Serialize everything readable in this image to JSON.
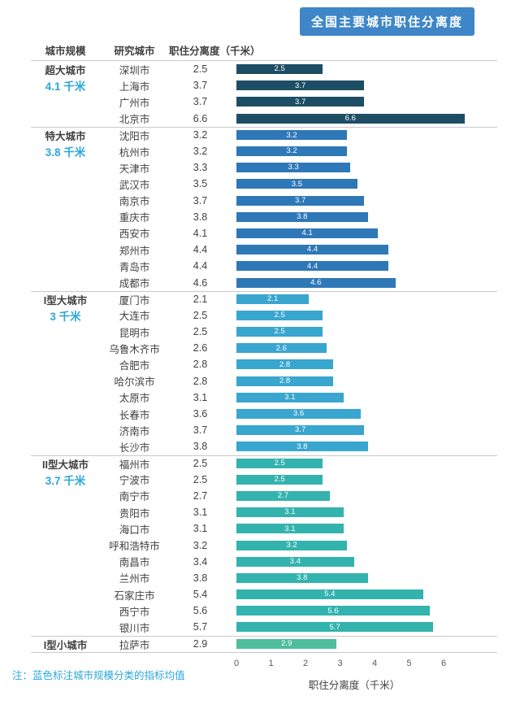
{
  "title": "全国主要城市职住分离度",
  "header": {
    "scale": "城市规模",
    "city": "研究城市",
    "value": "职住分离度（千米）"
  },
  "note": "注：蓝色标注城市规模分类的指标均值",
  "axis": {
    "label": "职住分离度（千米）",
    "ticks": [
      0,
      1,
      2,
      3,
      4,
      5,
      6
    ],
    "max": 6.6
  },
  "colors": {
    "title_bg": "#3E86C8",
    "accent_cyan": "#29A7DC",
    "separator": "#C9C9C9"
  },
  "chart_data": {
    "type": "bar",
    "orientation": "horizontal",
    "title": "全国主要城市职住分离度",
    "xlabel": "职住分离度（千米）",
    "xlim": [
      0,
      6.6
    ],
    "xticks": [
      0,
      1,
      2,
      3,
      4,
      5,
      6
    ],
    "grid": false,
    "groups": [
      {
        "scale": "超大城市",
        "avg": "4.1 千米",
        "avg_value": 4.1,
        "color": "#1D4E66",
        "cities": [
          {
            "name": "深圳市",
            "value": 2.5
          },
          {
            "name": "上海市",
            "value": 3.7
          },
          {
            "name": "广州市",
            "value": 3.7
          },
          {
            "name": "北京市",
            "value": 6.6
          }
        ]
      },
      {
        "scale": "特大城市",
        "avg": "3.8 千米",
        "avg_value": 3.8,
        "color": "#2E78B8",
        "cities": [
          {
            "name": "沈阳市",
            "value": 3.2
          },
          {
            "name": "杭州市",
            "value": 3.2
          },
          {
            "name": "天津市",
            "value": 3.3
          },
          {
            "name": "武汉市",
            "value": 3.5
          },
          {
            "name": "南京市",
            "value": 3.7
          },
          {
            "name": "重庆市",
            "value": 3.8
          },
          {
            "name": "西安市",
            "value": 4.1
          },
          {
            "name": "郑州市",
            "value": 4.4
          },
          {
            "name": "青岛市",
            "value": 4.4
          },
          {
            "name": "成都市",
            "value": 4.6
          }
        ]
      },
      {
        "scale": "I型大城市",
        "avg": "3 千米",
        "avg_value": 3,
        "color": "#38A6CF",
        "cities": [
          {
            "name": "厦门市",
            "value": 2.1
          },
          {
            "name": "大连市",
            "value": 2.5
          },
          {
            "name": "昆明市",
            "value": 2.5
          },
          {
            "name": "乌鲁木齐市",
            "value": 2.6
          },
          {
            "name": "合肥市",
            "value": 2.8
          },
          {
            "name": "哈尔滨市",
            "value": 2.8
          },
          {
            "name": "太原市",
            "value": 3.1
          },
          {
            "name": "长春市",
            "value": 3.6
          },
          {
            "name": "济南市",
            "value": 3.7
          },
          {
            "name": "长沙市",
            "value": 3.8
          }
        ]
      },
      {
        "scale": "II型大城市",
        "avg": "3.7 千米",
        "avg_value": 3.7,
        "color": "#33B3AE",
        "cities": [
          {
            "name": "福州市",
            "value": 2.5
          },
          {
            "name": "宁波市",
            "value": 2.5
          },
          {
            "name": "南宁市",
            "value": 2.7
          },
          {
            "name": "贵阳市",
            "value": 3.1
          },
          {
            "name": "海口市",
            "value": 3.1
          },
          {
            "name": "呼和浩特市",
            "value": 3.2
          },
          {
            "name": "南昌市",
            "value": 3.4
          },
          {
            "name": "兰州市",
            "value": 3.8
          },
          {
            "name": "石家庄市",
            "value": 5.4
          },
          {
            "name": "西宁市",
            "value": 5.6
          },
          {
            "name": "银川市",
            "value": 5.7
          }
        ]
      },
      {
        "scale": "I型小城市",
        "avg": null,
        "avg_value": null,
        "color": "#4FBE9C",
        "cities": [
          {
            "name": "拉萨市",
            "value": 2.9
          }
        ]
      }
    ]
  }
}
